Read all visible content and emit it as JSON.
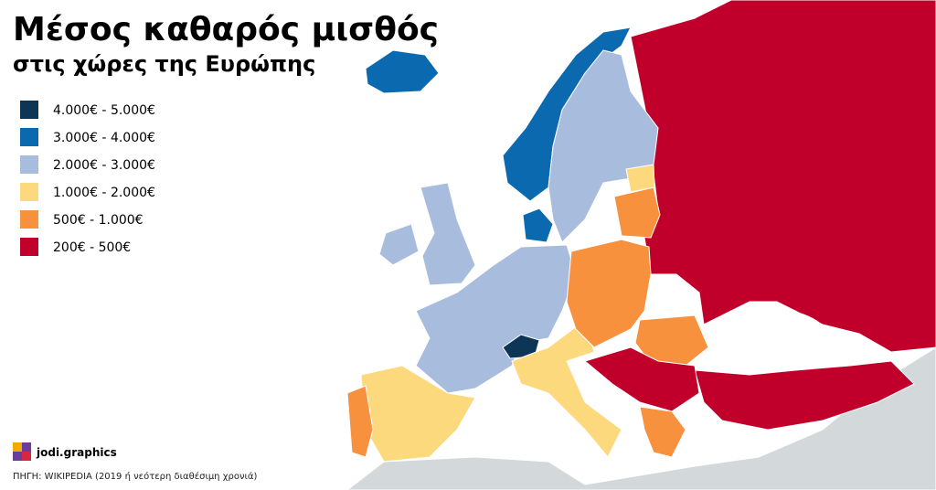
{
  "header": {
    "title": "Μέσος καθαρός μισθός",
    "subtitle": "στις χώρες της Ευρώπης"
  },
  "legend": [
    {
      "label": "4.000€ - 5.000€",
      "color": "#0c3556"
    },
    {
      "label": "3.000€ - 4.000€",
      "color": "#0b6aaf"
    },
    {
      "label": "2.000€ - 3.000€",
      "color": "#a8bddd"
    },
    {
      "label": "1.000€ - 2.000€",
      "color": "#fdd97d"
    },
    {
      "label": "500€ - 1.000€",
      "color": "#f7913d"
    },
    {
      "label": "200€ - 500€",
      "color": "#c0002b"
    }
  ],
  "footer": {
    "brand": "jodi.graphics",
    "source": "ΠΗΓΗ: WIKIPEDIA (2019 ή νεότερη διαθέσιμη χρονιά)"
  }
}
